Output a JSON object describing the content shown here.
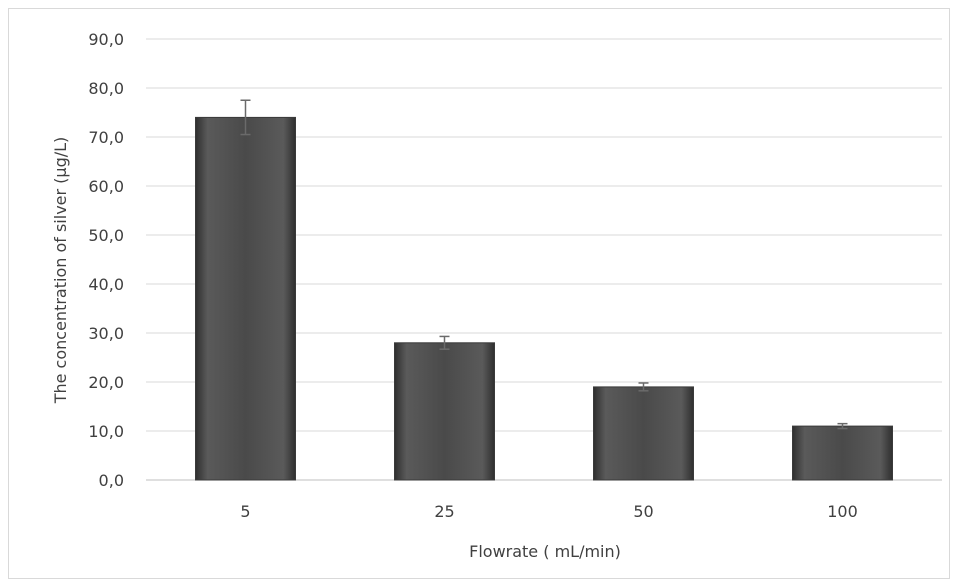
{
  "chart_data": {
    "type": "bar",
    "categories": [
      "5",
      "25",
      "50",
      "100"
    ],
    "values": [
      74.0,
      28.0,
      19.0,
      11.0
    ],
    "error": [
      3.5,
      1.3,
      0.8,
      0.5
    ],
    "xlabel": "Flowrate ( mL/min)",
    "ylabel": "The concentration of silver   (µg/L)",
    "ylim": [
      0,
      90
    ],
    "yticks": [
      "0,0",
      "10,0",
      "20,0",
      "30,0",
      "40,0",
      "50,0",
      "60,0",
      "70,0",
      "80,0",
      "90,0"
    ],
    "ytick_values": [
      0,
      10,
      20,
      30,
      40,
      50,
      60,
      70,
      80,
      90
    ],
    "grid": true,
    "legend": "none",
    "bar_color": "#4a4a4a",
    "grid_color": "#d9d9d9"
  }
}
